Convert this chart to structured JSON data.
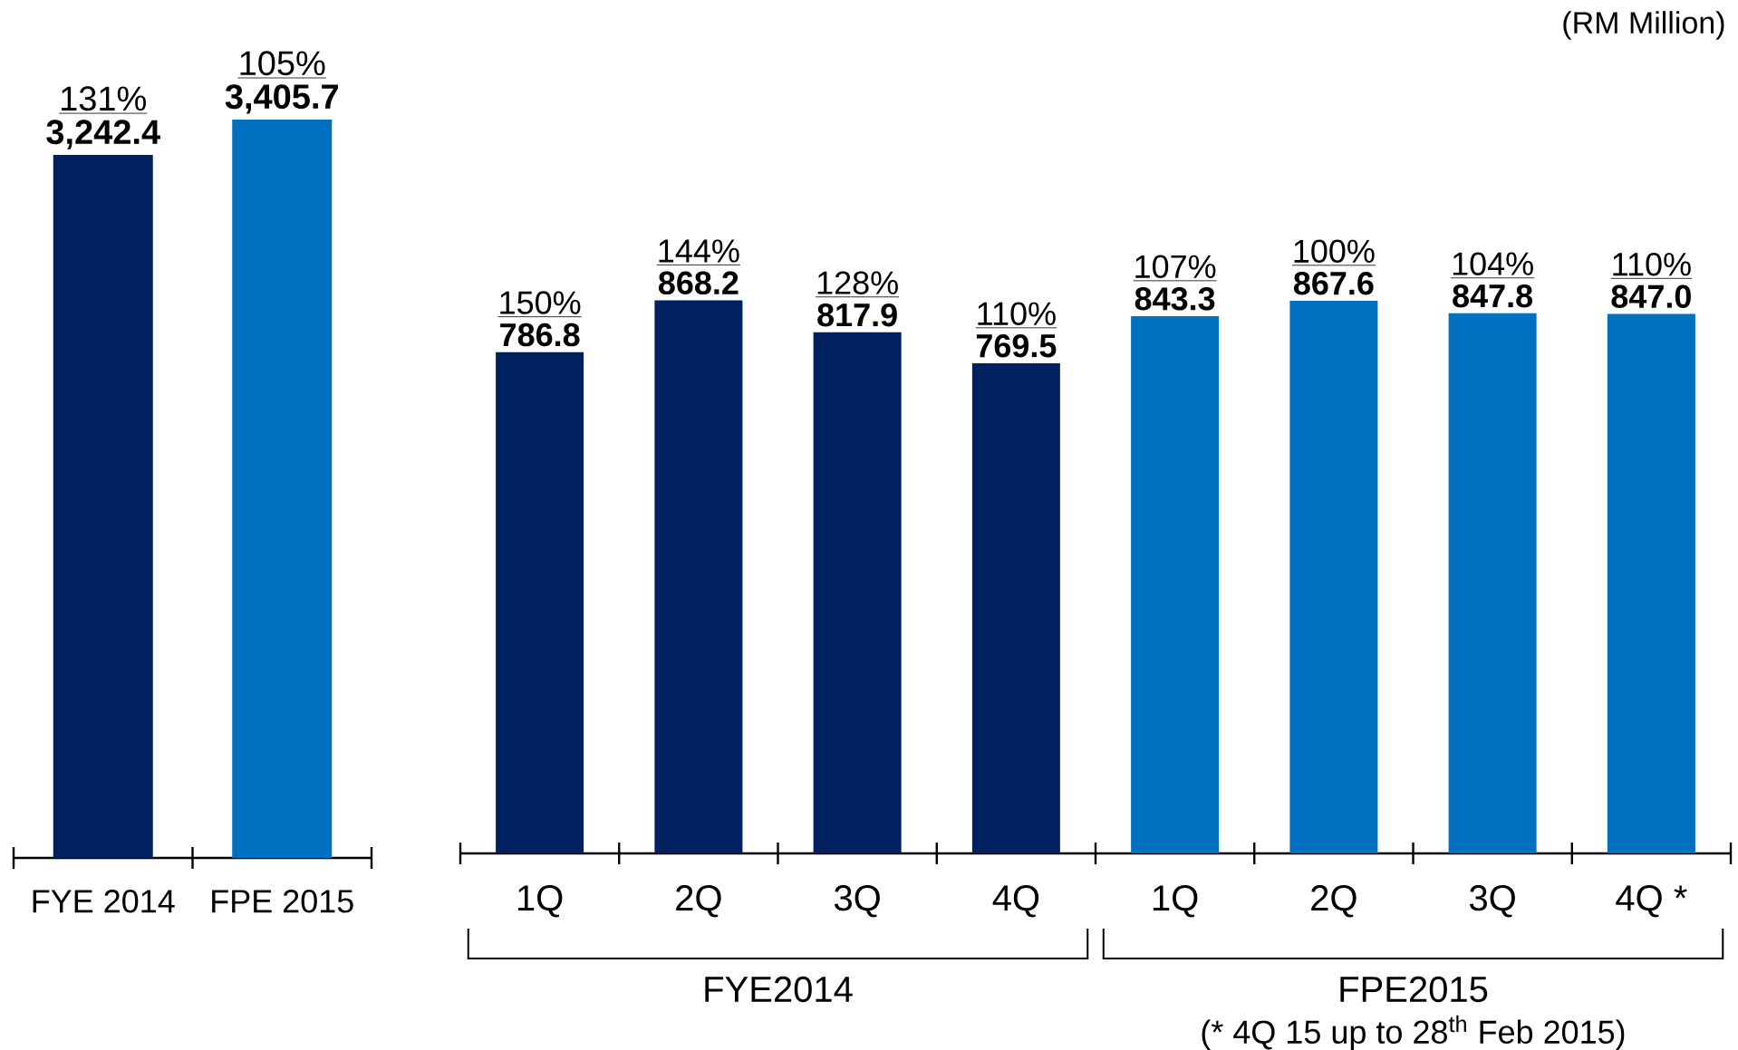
{
  "chart_data": [
    {
      "type": "bar",
      "categories": [
        "FYE 2014",
        "FPE 2015"
      ],
      "values": [
        3242.4,
        3405.7
      ],
      "colors": [
        "#002060",
        "#0070c0"
      ],
      "value_labels": [
        "3,242.4",
        "3,405.7"
      ],
      "annotations": [
        "131%",
        "105%"
      ]
    },
    {
      "type": "bar",
      "categories": [
        "1Q",
        "2Q",
        "3Q",
        "4Q",
        "1Q",
        "2Q",
        "3Q",
        "4Q *"
      ],
      "values": [
        786.8,
        868.2,
        817.9,
        769.5,
        843.3,
        867.6,
        847.8,
        847.0
      ],
      "colors": [
        "#002060",
        "#002060",
        "#002060",
        "#002060",
        "#0070c0",
        "#0070c0",
        "#0070c0",
        "#0070c0"
      ],
      "value_labels": [
        "786.8",
        "868.2",
        "817.9",
        "769.5",
        "843.3",
        "867.6",
        "847.8",
        "847.0"
      ],
      "annotations": [
        "150%",
        "144%",
        "128%",
        "110%",
        "107%",
        "100%",
        "104%",
        "110%",
        "FYE2014",
        "FPE2015",
        "(* 4Q 15 up to 28$^{th}$ Feb 2015)",
        "(RM Million)"
      ]
    }
  ]
}
